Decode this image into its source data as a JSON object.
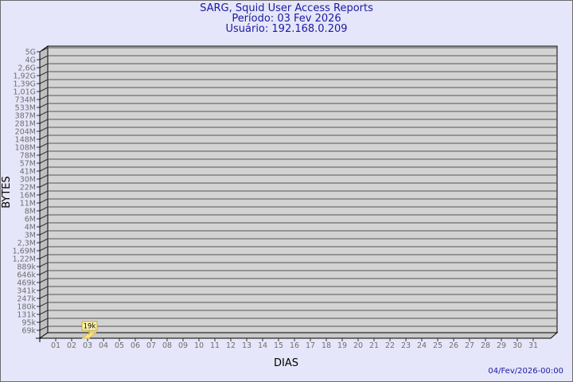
{
  "header": {
    "title": "SARG, Squid User Access Reports",
    "period": "Período: 03 Fev 2026",
    "user": "Usuário: 192.168.0.209"
  },
  "footer": {
    "timestamp": "04/Fev/2026-00:00"
  },
  "colors": {
    "title": "#1a1aa0",
    "plot_wall": "#d3d3d3",
    "bar": "#ffe680",
    "label_bg": "#fff5b0"
  },
  "chart_data": {
    "type": "bar",
    "xlabel": "DIAS",
    "ylabel": "BYTES",
    "y_tick_labels": [
      "5G",
      "4G",
      "2,6G",
      "1,92G",
      "1,39G",
      "1,01G",
      "734M",
      "533M",
      "387M",
      "281M",
      "204M",
      "148M",
      "108M",
      "78M",
      "57M",
      "41M",
      "30M",
      "22M",
      "16M",
      "11M",
      "8M",
      "6M",
      "4M",
      "3M",
      "2,3M",
      "1,69M",
      "1,22M",
      "889k",
      "646k",
      "469k",
      "341k",
      "247k",
      "180k",
      "131k",
      "95k",
      "69k"
    ],
    "y_scale": "log",
    "categories": [
      "01",
      "02",
      "03",
      "04",
      "05",
      "06",
      "07",
      "08",
      "09",
      "10",
      "11",
      "12",
      "13",
      "14",
      "15",
      "16",
      "17",
      "18",
      "19",
      "20",
      "21",
      "22",
      "23",
      "24",
      "25",
      "26",
      "27",
      "28",
      "29",
      "30",
      "31"
    ],
    "values": [
      0,
      0,
      19000,
      0,
      0,
      0,
      0,
      0,
      0,
      0,
      0,
      0,
      0,
      0,
      0,
      0,
      0,
      0,
      0,
      0,
      0,
      0,
      0,
      0,
      0,
      0,
      0,
      0,
      0,
      0,
      0
    ],
    "data_labels": {
      "03": "19k"
    },
    "grid": true
  }
}
